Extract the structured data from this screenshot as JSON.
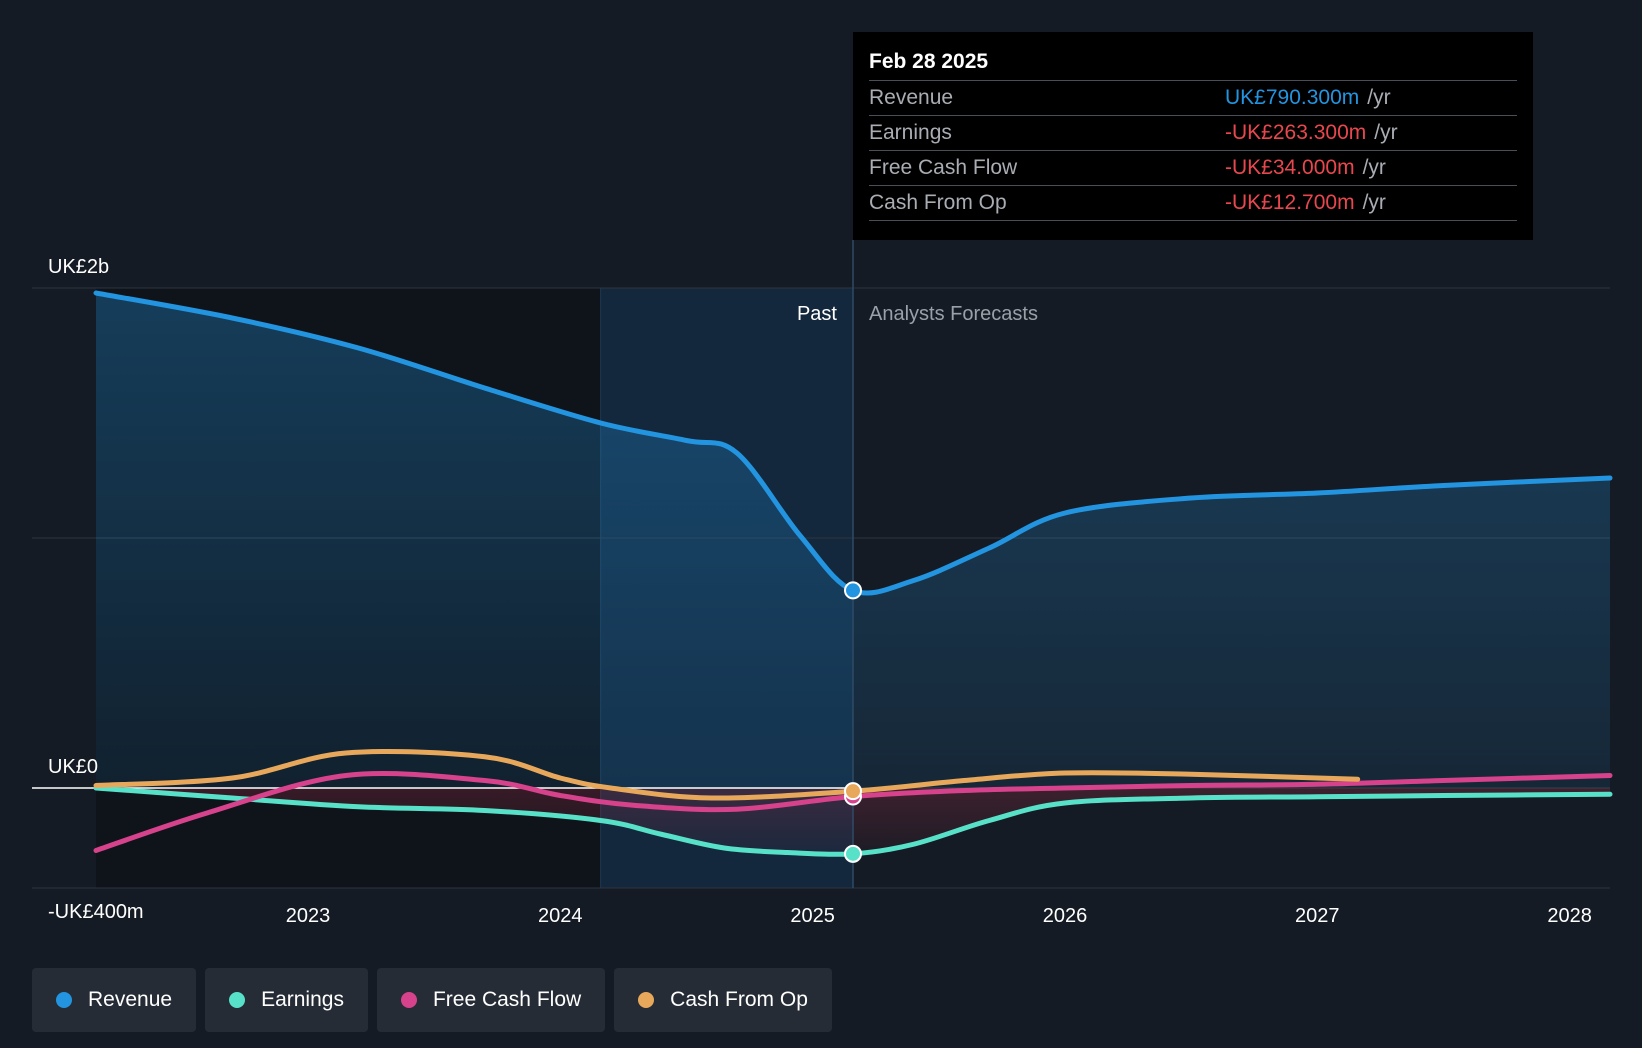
{
  "chart_data": {
    "type": "area",
    "y_axis_labels": [
      "UK£2b",
      "UK£0",
      "-UK£400m"
    ],
    "x_ticks": [
      "2023",
      "2024",
      "2025",
      "2026",
      "2027",
      "2028"
    ],
    "period_labels": {
      "past": "Past",
      "forecast": "Analysts Forecasts"
    },
    "ylim": [
      -400000000,
      2000000000
    ],
    "xlim": [
      2022.16,
      2028.16
    ],
    "highlight_start": 2024.16,
    "divider_x": 2025.16,
    "grid": true,
    "series": [
      {
        "name": "Revenue",
        "color": "#2394df",
        "fill": true,
        "x": [
          2022.16,
          2022.7,
          2023.2,
          2023.7,
          2024.16,
          2024.5,
          2024.7,
          2024.95,
          2025.16,
          2025.4,
          2025.7,
          2026.0,
          2026.5,
          2027.0,
          2027.5,
          2028.16
        ],
        "y": [
          1980000000,
          1880000000,
          1760000000,
          1600000000,
          1460000000,
          1390000000,
          1340000000,
          1010000000,
          790300000,
          830000000,
          960000000,
          1100000000,
          1160000000,
          1180000000,
          1210000000,
          1240000000
        ]
      },
      {
        "name": "Earnings",
        "color": "#58e1c9",
        "fill": false,
        "x": [
          2022.16,
          2022.7,
          2023.2,
          2023.7,
          2024.16,
          2024.4,
          2024.65,
          2024.9,
          2025.16,
          2025.4,
          2025.7,
          2026.0,
          2026.5,
          2027.0,
          2027.5,
          2028.16
        ],
        "y": [
          0,
          -40000000,
          -75000000,
          -90000000,
          -130000000,
          -185000000,
          -240000000,
          -258000000,
          -263300000,
          -225000000,
          -130000000,
          -60000000,
          -40000000,
          -35000000,
          -30000000,
          -25000000
        ]
      },
      {
        "name": "Free Cash Flow",
        "color": "#d6428c",
        "fill": false,
        "x": [
          2022.16,
          2022.6,
          2023.15,
          2023.7,
          2024.0,
          2024.3,
          2024.7,
          2025.16,
          2025.6,
          2026.0,
          2026.5,
          2027.0,
          2027.5,
          2028.16
        ],
        "y": [
          -250000000,
          -100000000,
          50000000,
          30000000,
          -30000000,
          -70000000,
          -85000000,
          -34000000,
          -10000000,
          0,
          10000000,
          15000000,
          30000000,
          50000000
        ]
      },
      {
        "name": "Cash From Op",
        "color": "#e8a85b",
        "fill": false,
        "x": [
          2022.16,
          2022.7,
          2023.15,
          2023.7,
          2024.0,
          2024.2,
          2024.6,
          2025.16,
          2025.6,
          2026.0,
          2026.5,
          2027.16
        ],
        "y": [
          10000000,
          40000000,
          140000000,
          125000000,
          40000000,
          0,
          -40000000,
          -12700000,
          30000000,
          60000000,
          55000000,
          35000000
        ]
      }
    ]
  },
  "tooltip": {
    "date": "Feb 28 2025",
    "rows": [
      {
        "label": "Revenue",
        "value": "UK£790.300m",
        "unit": "/yr",
        "color": "#2394df"
      },
      {
        "label": "Earnings",
        "value": "-UK£263.300m",
        "unit": "/yr",
        "color": "#e8474e"
      },
      {
        "label": "Free Cash Flow",
        "value": "-UK£34.000m",
        "unit": "/yr",
        "color": "#e8474e"
      },
      {
        "label": "Cash From Op",
        "value": "-UK£12.700m",
        "unit": "/yr",
        "color": "#e8474e"
      }
    ]
  },
  "legend": [
    {
      "label": "Revenue",
      "color": "#2394df"
    },
    {
      "label": "Earnings",
      "color": "#58e1c9"
    },
    {
      "label": "Free Cash Flow",
      "color": "#d6428c"
    },
    {
      "label": "Cash From Op",
      "color": "#e8a85b"
    }
  ]
}
